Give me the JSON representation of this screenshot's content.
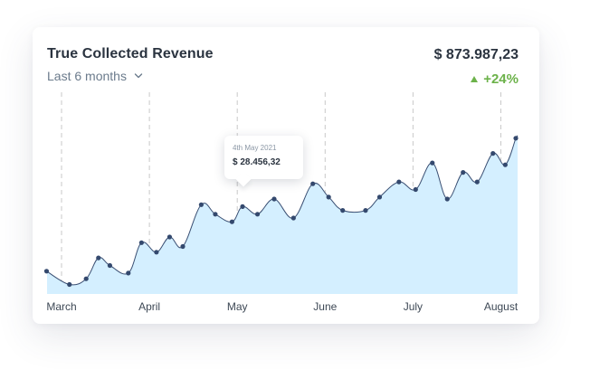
{
  "card": {
    "title": "True Collected Revenue",
    "period_label": "Last 6 months",
    "total_amount": "$ 873.987,23",
    "change": "+24%"
  },
  "tooltip": {
    "date": "4th May 2021",
    "value": "$ 28.456,32"
  },
  "colors": {
    "area_fill": "#d4efff",
    "line": "#3a4f73",
    "point": "#34496e",
    "guide": "#c9c9c9",
    "positive": "#6cb24a"
  },
  "icons": {
    "period_toggle": "chevron-down-icon",
    "change_indicator": "triangle-up-icon"
  },
  "chart_data": {
    "type": "area",
    "categories": [
      "March",
      "April",
      "May",
      "June",
      "July",
      "August"
    ],
    "xlim": [
      0,
      5.25
    ],
    "ylim": [
      0,
      100
    ],
    "grid": false,
    "legend": "none",
    "series": [
      {
        "values": [
          [
            -0.17,
            12
          ],
          [
            0.09,
            5
          ],
          [
            0.28,
            8
          ],
          [
            0.42,
            19
          ],
          [
            0.55,
            15
          ],
          [
            0.76,
            11
          ],
          [
            0.91,
            27
          ],
          [
            1.08,
            22
          ],
          [
            1.23,
            30
          ],
          [
            1.38,
            25
          ],
          [
            1.59,
            47
          ],
          [
            1.75,
            42
          ],
          [
            1.94,
            38
          ],
          [
            2.06,
            46
          ],
          [
            2.23,
            42
          ],
          [
            2.42,
            50
          ],
          [
            2.64,
            40
          ],
          [
            2.86,
            58
          ],
          [
            3.04,
            51
          ],
          [
            3.2,
            44
          ],
          [
            3.46,
            44
          ],
          [
            3.62,
            51
          ],
          [
            3.84,
            59
          ],
          [
            4.03,
            55
          ],
          [
            4.22,
            69
          ],
          [
            4.39,
            50
          ],
          [
            4.57,
            64
          ],
          [
            4.73,
            59
          ],
          [
            4.91,
            74
          ],
          [
            5.05,
            68
          ],
          [
            5.17,
            82
          ]
        ]
      }
    ],
    "highlighted_point": {
      "x": 2.06,
      "y": 46
    }
  }
}
